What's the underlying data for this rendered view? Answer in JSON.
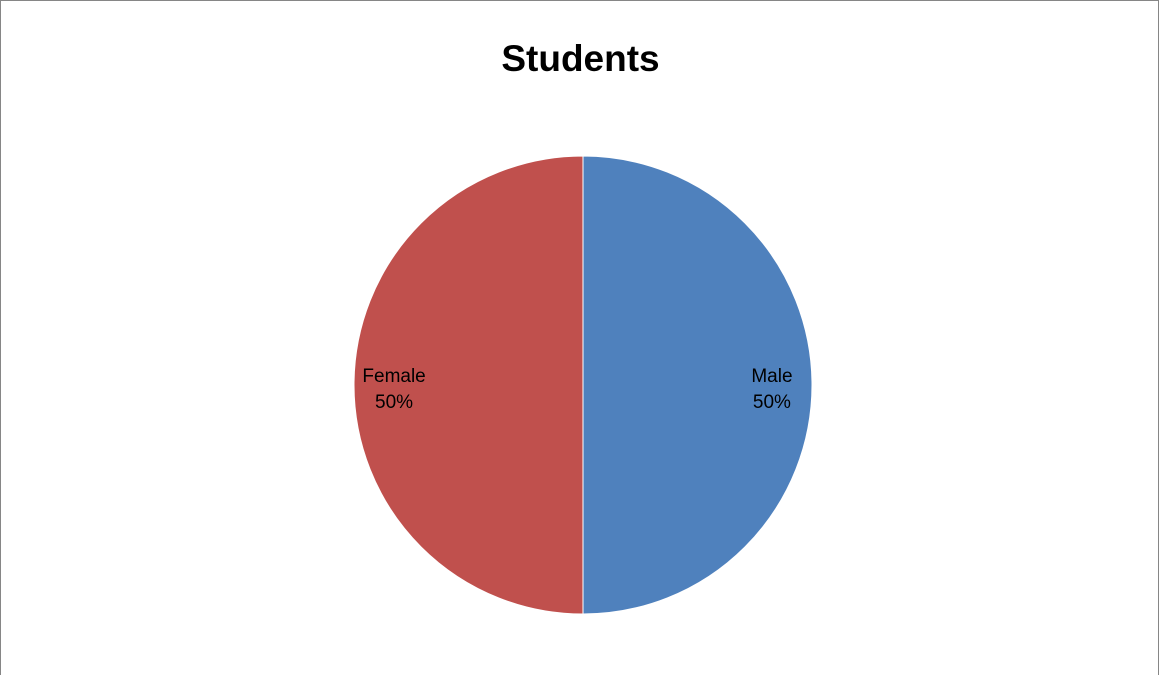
{
  "chart_data": {
    "type": "pie",
    "title": "Students",
    "slices": [
      {
        "name": "Male",
        "value": 50,
        "percent_label": "50%",
        "color": "#4F81BD"
      },
      {
        "name": "Female",
        "value": 50,
        "percent_label": "50%",
        "color": "#C0504D"
      }
    ],
    "legend": "none",
    "data_labels": "category-and-percent-inside"
  }
}
